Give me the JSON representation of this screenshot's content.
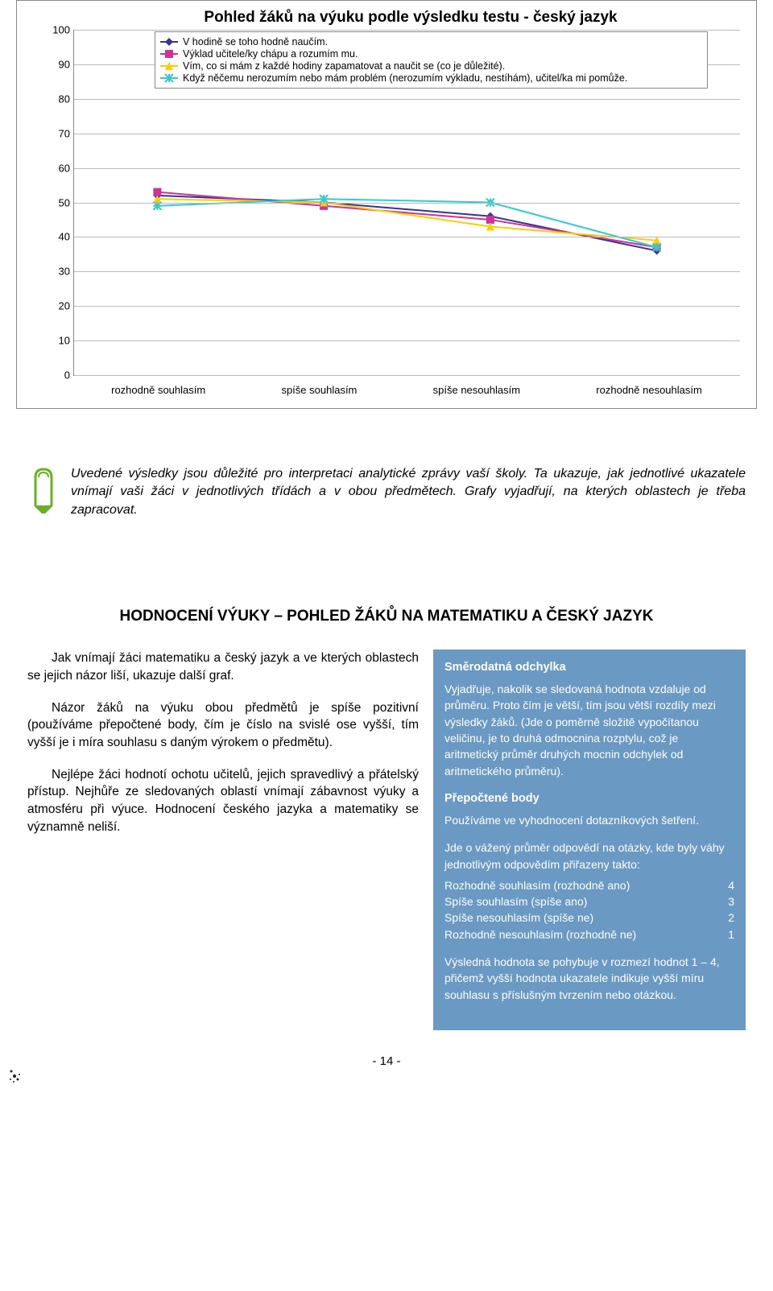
{
  "chart": {
    "type": "line",
    "title": "Pohled žáků na výuku podle výsledku testu - český jazyk",
    "ylim": [
      0,
      100
    ],
    "ytick_step": 10,
    "yticks": [
      "0",
      "10",
      "20",
      "30",
      "40",
      "50",
      "60",
      "70",
      "80",
      "90",
      "100"
    ],
    "categories": [
      "rozhodně souhlasím",
      "spíše souhlasím",
      "spíše nesouhlasím",
      "rozhodně nesouhlasím"
    ],
    "grid_color": "#bbbbbb",
    "background": "#ffffff",
    "series": [
      {
        "label": "V hodině se toho hodně naučím.",
        "color": "#333399",
        "marker": "diamond",
        "values": [
          52,
          50,
          46,
          36
        ]
      },
      {
        "label": "Výklad učitele/ky chápu a rozumím mu.",
        "color": "#cc3399",
        "marker": "square",
        "values": [
          53,
          49,
          45,
          37
        ]
      },
      {
        "label": "Vím, co si mám z každé hodiny zapamatovat a naučit se (co je důležité).",
        "color": "#ffcc00",
        "marker": "triangle",
        "values": [
          51,
          50,
          43,
          39
        ]
      },
      {
        "label": "Když něčemu nerozumím nebo mám problém (nerozumím výkladu, nestíhám), učitel/ka mi pomůže.",
        "color": "#33cccc",
        "marker": "cross",
        "values": [
          49,
          51,
          50,
          37
        ]
      }
    ]
  },
  "note": {
    "text": "Uvedené výsledky jsou důležité pro interpretaci analytické zprávy vaší školy. Ta ukazuje, jak jednotlivé ukazatele vnímají vaši žáci v jednotlivých třídách a v obou předmětech. Grafy vyjadřují, na kterých oblastech je třeba zapracovat."
  },
  "heading": "HODNOCENÍ VÝUKY – POHLED ŽÁKŮ NA MATEMATIKU A ČESKÝ JAZYK",
  "body": {
    "p1": "Jak vnímají žáci matematiku a český jazyk a ve kterých oblastech se jejich názor liší, ukazuje další graf.",
    "p2": "Názor žáků na výuku obou předmětů je spíše pozitivní (používáme přepočtené body, čím je číslo na svislé ose vyšší, tím vyšší je i míra souhlasu s daným výrokem o předmětu).",
    "p3": "Nejlépe žáci hodnotí ochotu učitelů, jejich spravedlivý a přátelský přístup. Nejhůře ze sledovaných oblastí vnímají zábavnost výuky a atmosféru při výuce. Hodnocení českého jazyka a matematiky se významně neliší."
  },
  "sidebar": {
    "h1": "Směrodatná odchylka",
    "p1": "Vyjadřuje, nakolik se sledovaná hodnota vzdaluje od průměru. Proto čím je větší, tím jsou větší rozdíly mezi výsledky žáků. (Jde o poměrně složitě vypočítanou veličinu, je to druhá odmocnina rozptylu, což je aritmetický průměr druhých mocnin odchylek od aritmetického průměru).",
    "h2": "Přepočtené body",
    "p2": "Používáme ve vyhodnocení dotazníkových šetření.",
    "p3": "Jde o vážený průměr odpovědí na otázky, kde byly váhy jednotlivým odpovědím přiřazeny takto:",
    "rows": [
      {
        "label": "Rozhodně souhlasím (rozhodně ano)",
        "val": "4"
      },
      {
        "label": "Spíše souhlasím (spíše ano)",
        "val": "3"
      },
      {
        "label": "Spíše nesouhlasím (spíše ne)",
        "val": "2"
      },
      {
        "label": "Rozhodně nesouhlasím (rozhodně ne)",
        "val": "1"
      }
    ],
    "p4": "Výsledná hodnota se pohybuje v rozmezí hodnot 1 – 4, přičemž vyšší hodnota ukazatele indikuje vyšší míru souhlasu s příslušným tvrzením nebo otázkou."
  },
  "page": "- 14 -"
}
